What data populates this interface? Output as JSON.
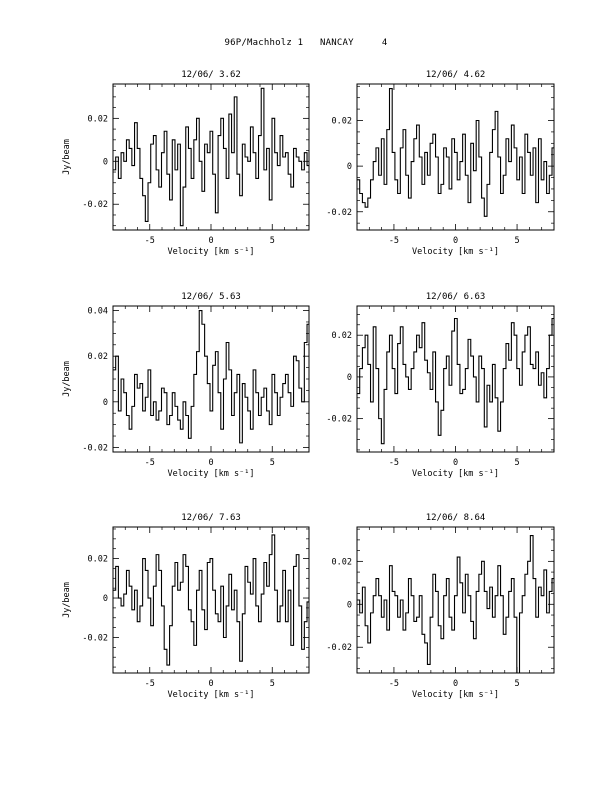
{
  "page": {
    "header": "96P/Machholz 1   NANCAY     4"
  },
  "chart_data": [
    {
      "type": "line",
      "step": true,
      "title": "12/06/ 3.62",
      "xlabel": "Velocity [km s⁻¹]",
      "ylabel": "Jy/beam",
      "xlim": [
        -8,
        8
      ],
      "ylim": [
        -0.032,
        0.036
      ],
      "xticks": [
        -5,
        0,
        5
      ],
      "xtick_labels": [
        "-5",
        "0",
        "5"
      ],
      "yticks": [
        -0.02,
        0,
        0.02
      ],
      "ytick_labels": [
        "-0.02",
        "0",
        "0.02"
      ],
      "x": [
        -8.0,
        -7.78,
        -7.56,
        -7.34,
        -7.12,
        -6.9,
        -6.68,
        -6.46,
        -6.24,
        -6.02,
        -5.8,
        -5.58,
        -5.36,
        -5.14,
        -4.92,
        -4.7,
        -4.48,
        -4.26,
        -4.04,
        -3.82,
        -3.6,
        -3.38,
        -3.16,
        -2.94,
        -2.72,
        -2.5,
        -2.28,
        -2.06,
        -1.84,
        -1.62,
        -1.4,
        -1.18,
        -0.96,
        -0.74,
        -0.52,
        -0.3,
        -0.08,
        0.14,
        0.36,
        0.58,
        0.8,
        1.02,
        1.24,
        1.46,
        1.68,
        1.9,
        2.12,
        2.34,
        2.56,
        2.78,
        3.0,
        3.22,
        3.44,
        3.66,
        3.88,
        4.1,
        4.32,
        4.54,
        4.76,
        4.98,
        5.2,
        5.42,
        5.64,
        5.86,
        6.08,
        6.3,
        6.52,
        6.74,
        6.96,
        7.18,
        7.4,
        7.62,
        7.84
      ],
      "y": [
        -0.004,
        0.002,
        -0.008,
        0.004,
        0.0,
        0.01,
        0.006,
        -0.002,
        0.018,
        0.006,
        -0.008,
        -0.016,
        -0.028,
        -0.01,
        0.008,
        0.012,
        -0.004,
        -0.012,
        0.004,
        0.014,
        -0.006,
        -0.018,
        0.01,
        -0.004,
        0.008,
        -0.03,
        -0.012,
        0.016,
        0.006,
        -0.008,
        0.01,
        0.02,
        0.0,
        -0.014,
        0.008,
        0.004,
        0.014,
        -0.006,
        -0.024,
        0.012,
        0.02,
        0.006,
        -0.008,
        0.022,
        0.004,
        0.03,
        -0.006,
        -0.016,
        0.008,
        0.002,
        0.0,
        0.016,
        0.004,
        -0.008,
        0.012,
        0.034,
        -0.004,
        0.006,
        -0.018,
        0.02,
        0.004,
        -0.002,
        0.012,
        0.002,
        0.004,
        -0.006,
        -0.012,
        0.006,
        0.002,
        0.0,
        -0.004,
        0.004,
        -0.002
      ]
    },
    {
      "type": "line",
      "step": true,
      "title": "12/06/ 4.62",
      "xlabel": "Velocity [km s⁻¹]",
      "ylabel": "",
      "xlim": [
        -8,
        8
      ],
      "ylim": [
        -0.028,
        0.036
      ],
      "xticks": [
        -5,
        0,
        5
      ],
      "xtick_labels": [
        "-5",
        "0",
        "5"
      ],
      "yticks": [
        -0.02,
        0,
        0.02
      ],
      "ytick_labels": [
        "-0.02",
        "0",
        "0.02"
      ],
      "x": [
        -8.0,
        -7.78,
        -7.56,
        -7.34,
        -7.12,
        -6.9,
        -6.68,
        -6.46,
        -6.24,
        -6.02,
        -5.8,
        -5.58,
        -5.36,
        -5.14,
        -4.92,
        -4.7,
        -4.48,
        -4.26,
        -4.04,
        -3.82,
        -3.6,
        -3.38,
        -3.16,
        -2.94,
        -2.72,
        -2.5,
        -2.28,
        -2.06,
        -1.84,
        -1.62,
        -1.4,
        -1.18,
        -0.96,
        -0.74,
        -0.52,
        -0.3,
        -0.08,
        0.14,
        0.36,
        0.58,
        0.8,
        1.02,
        1.24,
        1.46,
        1.68,
        1.9,
        2.12,
        2.34,
        2.56,
        2.78,
        3.0,
        3.22,
        3.44,
        3.66,
        3.88,
        4.1,
        4.32,
        4.54,
        4.76,
        4.98,
        5.2,
        5.42,
        5.64,
        5.86,
        6.08,
        6.3,
        6.52,
        6.74,
        6.96,
        7.18,
        7.4,
        7.62,
        7.84
      ],
      "y": [
        -0.006,
        -0.012,
        -0.016,
        -0.018,
        -0.014,
        -0.006,
        0.002,
        0.008,
        -0.004,
        0.012,
        -0.008,
        0.016,
        0.034,
        0.006,
        -0.006,
        -0.012,
        0.008,
        0.016,
        -0.004,
        -0.014,
        0.002,
        0.012,
        0.018,
        0.004,
        -0.008,
        0.006,
        -0.004,
        0.01,
        0.014,
        0.004,
        -0.012,
        -0.008,
        0.008,
        0.004,
        -0.01,
        0.012,
        0.006,
        -0.006,
        0.002,
        0.014,
        -0.004,
        -0.016,
        0.01,
        -0.002,
        0.02,
        0.004,
        -0.014,
        -0.022,
        -0.008,
        0.006,
        0.016,
        0.024,
        0.004,
        -0.012,
        -0.004,
        0.012,
        0.002,
        0.018,
        0.008,
        -0.006,
        0.004,
        -0.012,
        0.014,
        0.006,
        -0.004,
        0.008,
        -0.016,
        0.012,
        -0.006,
        0.002,
        -0.012,
        -0.004,
        0.008
      ]
    },
    {
      "type": "line",
      "step": true,
      "title": "12/06/ 5.63",
      "xlabel": "Velocity [km s⁻¹]",
      "ylabel": "Jy/beam",
      "xlim": [
        -8,
        8
      ],
      "ylim": [
        -0.022,
        0.042
      ],
      "xticks": [
        -5,
        0,
        5
      ],
      "xtick_labels": [
        "-5",
        "0",
        "5"
      ],
      "yticks": [
        -0.02,
        0,
        0.02,
        0.04
      ],
      "ytick_labels": [
        "-0.02",
        "0",
        "0.02",
        "0.04"
      ],
      "x": [
        -8.0,
        -7.78,
        -7.56,
        -7.34,
        -7.12,
        -6.9,
        -6.68,
        -6.46,
        -6.24,
        -6.02,
        -5.8,
        -5.58,
        -5.36,
        -5.14,
        -4.92,
        -4.7,
        -4.48,
        -4.26,
        -4.04,
        -3.82,
        -3.6,
        -3.38,
        -3.16,
        -2.94,
        -2.72,
        -2.5,
        -2.28,
        -2.06,
        -1.84,
        -1.62,
        -1.4,
        -1.18,
        -0.96,
        -0.74,
        -0.52,
        -0.3,
        -0.08,
        0.14,
        0.36,
        0.58,
        0.8,
        1.02,
        1.24,
        1.46,
        1.68,
        1.9,
        2.12,
        2.34,
        2.56,
        2.78,
        3.0,
        3.22,
        3.44,
        3.66,
        3.88,
        4.1,
        4.32,
        4.54,
        4.76,
        4.98,
        5.2,
        5.42,
        5.64,
        5.86,
        6.08,
        6.3,
        6.52,
        6.74,
        6.96,
        7.18,
        7.4,
        7.62,
        7.84
      ],
      "y": [
        0.014,
        0.02,
        -0.004,
        0.01,
        0.004,
        -0.006,
        -0.012,
        -0.002,
        0.012,
        0.006,
        0.008,
        -0.004,
        0.002,
        0.014,
        -0.006,
        0.0,
        -0.008,
        -0.004,
        0.006,
        0.004,
        -0.01,
        -0.006,
        0.004,
        -0.002,
        -0.008,
        -0.012,
        0.0,
        -0.006,
        -0.016,
        -0.002,
        0.012,
        0.022,
        0.04,
        0.034,
        0.02,
        0.008,
        -0.004,
        0.016,
        0.022,
        0.004,
        -0.012,
        0.01,
        0.026,
        0.014,
        -0.006,
        0.004,
        0.012,
        -0.018,
        0.008,
        0.002,
        -0.004,
        -0.012,
        0.014,
        0.004,
        -0.006,
        0.002,
        0.006,
        -0.004,
        -0.01,
        0.012,
        0.004,
        -0.006,
        0.002,
        0.008,
        0.012,
        0.004,
        -0.002,
        0.02,
        0.018,
        0.006,
        0.0,
        0.026,
        0.034
      ]
    },
    {
      "type": "line",
      "step": true,
      "title": "12/06/ 6.63",
      "xlabel": "Velocity [km s⁻¹]",
      "ylabel": "",
      "xlim": [
        -8,
        8
      ],
      "ylim": [
        -0.036,
        0.034
      ],
      "xticks": [
        -5,
        0,
        5
      ],
      "xtick_labels": [
        "-5",
        "0",
        "5"
      ],
      "yticks": [
        -0.02,
        0,
        0.02
      ],
      "ytick_labels": [
        "-0.02",
        "0",
        "0.02"
      ],
      "x": [
        -8.0,
        -7.78,
        -7.56,
        -7.34,
        -7.12,
        -6.9,
        -6.68,
        -6.46,
        -6.24,
        -6.02,
        -5.8,
        -5.58,
        -5.36,
        -5.14,
        -4.92,
        -4.7,
        -4.48,
        -4.26,
        -4.04,
        -3.82,
        -3.6,
        -3.38,
        -3.16,
        -2.94,
        -2.72,
        -2.5,
        -2.28,
        -2.06,
        -1.84,
        -1.62,
        -1.4,
        -1.18,
        -0.96,
        -0.74,
        -0.52,
        -0.3,
        -0.08,
        0.14,
        0.36,
        0.58,
        0.8,
        1.02,
        1.24,
        1.46,
        1.68,
        1.9,
        2.12,
        2.34,
        2.56,
        2.78,
        3.0,
        3.22,
        3.44,
        3.66,
        3.88,
        4.1,
        4.32,
        4.54,
        4.76,
        4.98,
        5.2,
        5.42,
        5.64,
        5.86,
        6.08,
        6.3,
        6.52,
        6.74,
        6.96,
        7.18,
        7.4,
        7.62,
        7.84
      ],
      "y": [
        -0.008,
        0.004,
        0.014,
        0.02,
        0.006,
        -0.012,
        0.024,
        0.004,
        -0.02,
        -0.032,
        -0.006,
        0.012,
        0.02,
        0.004,
        -0.008,
        0.016,
        0.024,
        0.006,
        0.0,
        -0.006,
        0.004,
        0.012,
        0.02,
        0.014,
        0.026,
        0.008,
        0.002,
        -0.006,
        0.012,
        -0.012,
        -0.028,
        -0.016,
        0.004,
        0.01,
        -0.004,
        0.022,
        0.028,
        0.006,
        -0.008,
        -0.006,
        0.004,
        0.018,
        0.01,
        0.0,
        -0.012,
        0.01,
        0.004,
        -0.024,
        -0.004,
        -0.012,
        0.006,
        -0.01,
        -0.026,
        -0.012,
        0.004,
        0.016,
        0.008,
        0.026,
        0.02,
        0.004,
        -0.004,
        0.012,
        0.02,
        0.024,
        0.006,
        0.004,
        0.012,
        -0.004,
        0.002,
        -0.01,
        0.004,
        0.02,
        0.028
      ]
    },
    {
      "type": "line",
      "step": true,
      "title": "12/06/ 7.63",
      "xlabel": "Velocity [km s⁻¹]",
      "ylabel": "Jy/beam",
      "xlim": [
        -8,
        8
      ],
      "ylim": [
        -0.038,
        0.036
      ],
      "xticks": [
        -5,
        0,
        5
      ],
      "xtick_labels": [
        "-5",
        "0",
        "5"
      ],
      "yticks": [
        -0.02,
        0,
        0.02
      ],
      "ytick_labels": [
        "-0.02",
        "0",
        "0.02"
      ],
      "x": [
        -8.0,
        -7.78,
        -7.56,
        -7.34,
        -7.12,
        -6.9,
        -6.68,
        -6.46,
        -6.24,
        -6.02,
        -5.8,
        -5.58,
        -5.36,
        -5.14,
        -4.92,
        -4.7,
        -4.48,
        -4.26,
        -4.04,
        -3.82,
        -3.6,
        -3.38,
        -3.16,
        -2.94,
        -2.72,
        -2.5,
        -2.28,
        -2.06,
        -1.84,
        -1.62,
        -1.4,
        -1.18,
        -0.96,
        -0.74,
        -0.52,
        -0.3,
        -0.08,
        0.14,
        0.36,
        0.58,
        0.8,
        1.02,
        1.24,
        1.46,
        1.68,
        1.9,
        2.12,
        2.34,
        2.56,
        2.78,
        3.0,
        3.22,
        3.44,
        3.66,
        3.88,
        4.1,
        4.32,
        4.54,
        4.76,
        4.98,
        5.2,
        5.42,
        5.64,
        5.86,
        6.08,
        6.3,
        6.52,
        6.74,
        6.96,
        7.18,
        7.4,
        7.62,
        7.84
      ],
      "y": [
        0.004,
        0.016,
        0.0,
        -0.004,
        0.002,
        0.014,
        0.006,
        -0.006,
        0.004,
        -0.012,
        -0.004,
        0.02,
        0.014,
        0.0,
        -0.014,
        0.006,
        0.022,
        0.014,
        -0.004,
        -0.026,
        -0.034,
        -0.014,
        0.006,
        0.018,
        0.004,
        0.008,
        0.022,
        0.016,
        -0.006,
        -0.012,
        -0.024,
        0.004,
        0.014,
        -0.006,
        -0.016,
        0.018,
        0.02,
        0.004,
        -0.008,
        -0.012,
        0.006,
        -0.02,
        -0.004,
        0.012,
        -0.006,
        0.004,
        -0.012,
        -0.032,
        -0.008,
        0.016,
        0.008,
        0.002,
        0.02,
        -0.004,
        -0.012,
        0.002,
        0.018,
        0.006,
        0.022,
        0.032,
        0.004,
        -0.012,
        -0.004,
        0.014,
        -0.012,
        0.004,
        -0.024,
        0.016,
        0.022,
        -0.004,
        -0.026,
        -0.012,
        -0.002
      ]
    },
    {
      "type": "line",
      "step": true,
      "title": "12/06/ 8.64",
      "xlabel": "Velocity [km s⁻¹]",
      "ylabel": "",
      "xlim": [
        -8,
        8
      ],
      "ylim": [
        -0.032,
        0.036
      ],
      "xticks": [
        -5,
        0,
        5
      ],
      "xtick_labels": [
        "-5",
        "0",
        "5"
      ],
      "yticks": [
        -0.02,
        0,
        0.02
      ],
      "ytick_labels": [
        "-0.02",
        "0",
        "0.02"
      ],
      "x": [
        -8.0,
        -7.78,
        -7.56,
        -7.34,
        -7.12,
        -6.9,
        -6.68,
        -6.46,
        -6.24,
        -6.02,
        -5.8,
        -5.58,
        -5.36,
        -5.14,
        -4.92,
        -4.7,
        -4.48,
        -4.26,
        -4.04,
        -3.82,
        -3.6,
        -3.38,
        -3.16,
        -2.94,
        -2.72,
        -2.5,
        -2.28,
        -2.06,
        -1.84,
        -1.62,
        -1.4,
        -1.18,
        -0.96,
        -0.74,
        -0.52,
        -0.3,
        -0.08,
        0.14,
        0.36,
        0.58,
        0.8,
        1.02,
        1.24,
        1.46,
        1.68,
        1.9,
        2.12,
        2.34,
        2.56,
        2.78,
        3.0,
        3.22,
        3.44,
        3.66,
        3.88,
        4.1,
        4.32,
        4.54,
        4.76,
        4.98,
        5.2,
        5.42,
        5.64,
        5.86,
        6.08,
        6.3,
        6.52,
        6.74,
        6.96,
        7.18,
        7.4,
        7.62,
        7.84
      ],
      "y": [
        0.002,
        -0.004,
        0.008,
        -0.01,
        -0.018,
        -0.004,
        0.004,
        0.012,
        0.004,
        -0.006,
        0.002,
        -0.012,
        0.018,
        0.006,
        0.004,
        -0.006,
        0.002,
        -0.012,
        -0.004,
        0.012,
        0.004,
        -0.008,
        -0.006,
        0.004,
        -0.014,
        -0.018,
        -0.028,
        -0.006,
        0.014,
        0.006,
        -0.01,
        -0.016,
        0.004,
        0.012,
        -0.006,
        -0.012,
        0.004,
        0.022,
        0.01,
        -0.004,
        0.014,
        0.004,
        -0.008,
        -0.016,
        0.006,
        0.014,
        0.02,
        0.006,
        -0.002,
        0.008,
        -0.006,
        0.004,
        0.018,
        0.004,
        -0.014,
        -0.006,
        0.006,
        0.012,
        -0.006,
        -0.032,
        -0.004,
        0.004,
        0.014,
        0.02,
        0.032,
        0.012,
        -0.006,
        0.008,
        0.004,
        0.016,
        -0.004,
        0.006,
        0.012
      ]
    }
  ]
}
